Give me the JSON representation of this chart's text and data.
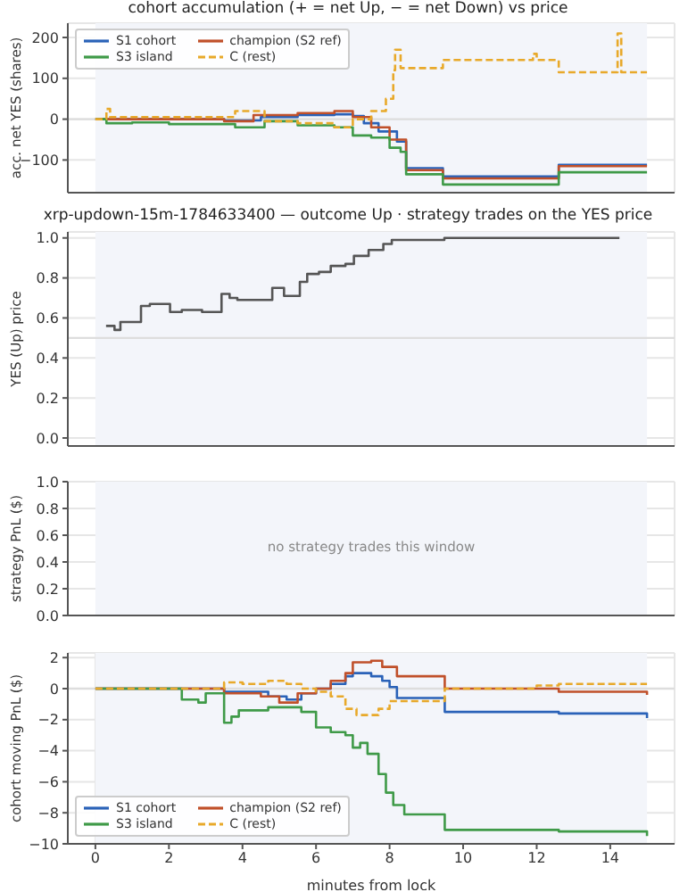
{
  "chart_data": [
    {
      "type": "step",
      "title": "cohort accumulation (+ = net Up, − = net Down) vs price",
      "ylabel": "acc. net YES (shares)",
      "xlim": [
        -0.75,
        15.75
      ],
      "xticks": [
        0,
        2,
        4,
        6,
        8,
        10,
        12,
        14
      ],
      "ylim": [
        -180,
        235
      ],
      "yticks": [
        -100,
        0,
        100,
        200
      ],
      "tick_labels": "y",
      "grid": true,
      "legend": "top left",
      "bands": [
        {
          "axis": "x",
          "from": 0,
          "to": 15,
          "color": "#f3f5fa"
        }
      ],
      "ref_lines": [
        {
          "axis": "y",
          "value": 0,
          "color": "#dddddd"
        }
      ],
      "series": [
        {
          "name": "S1 cohort",
          "color": "#2a62b8",
          "x": [
            0,
            3.5,
            4.5,
            5.5,
            6.5,
            7.0,
            7.3,
            7.7,
            8.2,
            8.45,
            9.45,
            12.6,
            15
          ],
          "values": [
            0,
            -3,
            5,
            10,
            12,
            8,
            -10,
            -30,
            -55,
            -120,
            -140,
            -112,
            -112
          ]
        },
        {
          "name": "champion (S2 ref)",
          "color": "#c0502a",
          "x": [
            0,
            3.5,
            4.3,
            5.5,
            6.5,
            7.0,
            7.5,
            8.0,
            8.45,
            9.45,
            12.6,
            15
          ],
          "values": [
            0,
            -5,
            10,
            15,
            20,
            5,
            -20,
            -50,
            -125,
            -145,
            -115,
            -115
          ]
        },
        {
          "name": "S3 island",
          "color": "#3f9a48",
          "x": [
            0,
            0.3,
            1.0,
            2.0,
            3.8,
            4.6,
            5.5,
            6.5,
            7.0,
            7.5,
            8.0,
            8.3,
            8.45,
            9.45,
            12.6,
            15
          ],
          "values": [
            0,
            -10,
            -8,
            -12,
            -20,
            -5,
            -15,
            -20,
            -40,
            -45,
            -70,
            -80,
            -135,
            -160,
            -130,
            -130
          ]
        },
        {
          "name": "C (rest)",
          "color": "#e8a92a",
          "line_style": "dashed",
          "x": [
            0,
            0.3,
            0.4,
            3.8,
            4.6,
            5.5,
            6.5,
            7.0,
            7.5,
            7.9,
            8.1,
            8.15,
            8.3,
            9.45,
            11.9,
            12.0,
            12.6,
            14.2,
            14.3,
            15
          ],
          "values": [
            0,
            25,
            5,
            20,
            -5,
            -10,
            -20,
            0,
            20,
            50,
            120,
            170,
            125,
            145,
            160,
            145,
            115,
            210,
            115,
            115
          ]
        }
      ]
    },
    {
      "type": "step",
      "title": "xrp-updown-15m-1784633400 — outcome Up · strategy trades on the YES price",
      "ylabel": "YES (Up) price",
      "xlim": [
        -0.75,
        15.75
      ],
      "xticks": [
        0,
        2,
        4,
        6,
        8,
        10,
        12,
        14
      ],
      "ylim": [
        -0.04,
        1.03
      ],
      "yticks": [
        {
          "value": 0,
          "label": "0.0"
        },
        {
          "value": 0.2,
          "label": "0.2"
        },
        {
          "value": 0.4,
          "label": "0.4"
        },
        {
          "value": 0.6,
          "label": "0.6"
        },
        {
          "value": 0.8,
          "label": "0.8"
        },
        {
          "value": 1,
          "label": "1.0"
        }
      ],
      "tick_labels": "y",
      "grid": true,
      "bands": [
        {
          "axis": "x",
          "from": 0,
          "to": 15,
          "color": "#f3f5fa"
        }
      ],
      "ref_lines": [
        {
          "axis": "y",
          "value": 0.5,
          "color": "#dddddd"
        }
      ],
      "series": [
        {
          "color": "#555555",
          "x": [
            0.29,
            0.52,
            0.68,
            1.24,
            1.48,
            2.03,
            2.35,
            2.9,
            3.43,
            3.65,
            3.86,
            4.81,
            5.13,
            5.56,
            5.76,
            6.08,
            6.4,
            6.8,
            7.03,
            7.43,
            7.83,
            8.06,
            9.49,
            14.25
          ],
          "values": [
            0.56,
            0.54,
            0.58,
            0.66,
            0.67,
            0.63,
            0.64,
            0.63,
            0.72,
            0.7,
            0.69,
            0.75,
            0.71,
            0.78,
            0.82,
            0.83,
            0.86,
            0.87,
            0.91,
            0.94,
            0.97,
            0.99,
            1.0,
            1.0
          ]
        }
      ]
    },
    {
      "type": "line",
      "ylabel": "strategy PnL ($)",
      "xlim": [
        -0.75,
        15.75
      ],
      "xticks": [
        0,
        2,
        4,
        6,
        8,
        10,
        12,
        14
      ],
      "ylim": [
        0,
        1
      ],
      "yticks": [
        {
          "value": 0,
          "label": "0.0"
        },
        {
          "value": 0.2,
          "label": "0.2"
        },
        {
          "value": 0.4,
          "label": "0.4"
        },
        {
          "value": 0.6,
          "label": "0.6"
        },
        {
          "value": 0.8,
          "label": "0.8"
        },
        {
          "value": 1,
          "label": "1.0"
        }
      ],
      "tick_labels": "y",
      "grid": true,
      "bands": [
        {
          "axis": "x",
          "from": 0,
          "to": 15,
          "color": "#f3f5fa"
        }
      ],
      "annotations": [
        "no strategy trades this window"
      ]
    },
    {
      "type": "step",
      "xlabel": "minutes from lock",
      "ylabel": "cohort moving PnL ($)",
      "xlim": [
        -0.75,
        15.75
      ],
      "xticks": [
        0,
        2,
        4,
        6,
        8,
        10,
        12,
        14
      ],
      "ylim": [
        -10,
        2.3
      ],
      "yticks": [
        -10,
        -8,
        -6,
        -4,
        -2,
        0,
        2
      ],
      "grid": true,
      "legend": "bottom left",
      "bands": [
        {
          "axis": "x",
          "from": 0,
          "to": 15,
          "color": "#f3f5fa"
        }
      ],
      "ref_lines": [
        {
          "axis": "y",
          "value": 0,
          "color": "#dddddd"
        }
      ],
      "series": [
        {
          "name": "S1 cohort",
          "color": "#2a62b8",
          "x": [
            0,
            3.5,
            4.7,
            5.2,
            5.6,
            6.0,
            6.4,
            6.8,
            7.0,
            7.5,
            7.8,
            8.0,
            8.2,
            9.5,
            12.6,
            15
          ],
          "values": [
            0,
            -0.2,
            -0.5,
            -0.7,
            -0.3,
            0,
            0.3,
            0.8,
            1.0,
            0.8,
            0.5,
            0.1,
            -0.6,
            -1.5,
            -1.6,
            -1.9
          ]
        },
        {
          "name": "champion (S2 ref)",
          "color": "#c0502a",
          "x": [
            0,
            3.5,
            4.5,
            5.0,
            5.5,
            6.0,
            6.4,
            6.8,
            7.0,
            7.5,
            7.8,
            8.2,
            9.5,
            12.6,
            15
          ],
          "values": [
            0,
            -0.3,
            -0.5,
            -0.9,
            -0.3,
            0,
            0.5,
            1.0,
            1.7,
            1.8,
            1.4,
            0.8,
            0,
            -0.2,
            -0.4
          ]
        },
        {
          "name": "S3 island",
          "color": "#3f9a48",
          "x": [
            0,
            2.35,
            2.8,
            3.0,
            3.5,
            3.7,
            3.9,
            4.7,
            5.6,
            6.0,
            6.4,
            6.8,
            7.0,
            7.2,
            7.4,
            7.7,
            7.9,
            8.1,
            8.4,
            9.5,
            12.6,
            15
          ],
          "values": [
            0,
            -0.7,
            -0.9,
            -0.3,
            -2.2,
            -1.8,
            -1.4,
            -1.2,
            -1.5,
            -2.5,
            -2.8,
            -3.0,
            -3.8,
            -3.5,
            -4.2,
            -5.5,
            -6.7,
            -7.5,
            -8.1,
            -9.1,
            -9.2,
            -9.5
          ]
        },
        {
          "name": "C (rest)",
          "color": "#e8a92a",
          "line_style": "dashed",
          "x": [
            0,
            3.5,
            4.0,
            4.7,
            5.2,
            5.6,
            6.0,
            6.4,
            6.8,
            7.1,
            7.7,
            8.0,
            9.5,
            12.0,
            12.6,
            15
          ],
          "values": [
            0,
            0.4,
            0.3,
            0.5,
            0.3,
            0,
            -0.2,
            -0.5,
            -1.3,
            -1.7,
            -1.3,
            -0.8,
            0,
            0.2,
            0.3,
            0.3
          ]
        }
      ]
    }
  ]
}
